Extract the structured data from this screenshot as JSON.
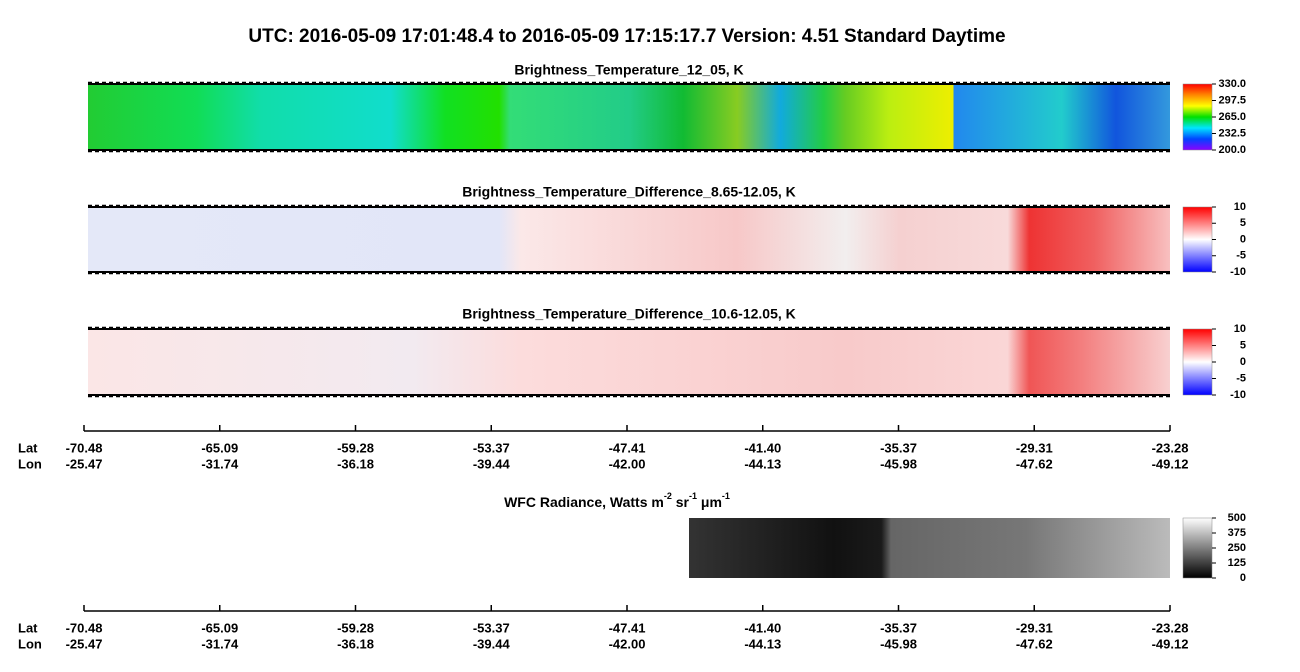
{
  "title": "UTC:  2016-05-09   17:01:48.4  to  2016-05-09   17:15:17.7    Version: 4.51  Standard Daytime",
  "chart_data": [
    {
      "type": "heatmap",
      "title": "Brightness_Temperature_12_05, K",
      "clim": [
        200,
        330
      ],
      "cticks": [
        {
          "value": 200,
          "label": "200.0"
        },
        {
          "value": 232.5,
          "label": "232.5"
        },
        {
          "value": 265,
          "label": "265.0"
        },
        {
          "value": 297.5,
          "label": "297.5"
        },
        {
          "value": 330,
          "label": "330.0"
        }
      ],
      "colormap": [
        "#8a00ff",
        "#0044ff",
        "#00e5ff",
        "#00e000",
        "#ffff00",
        "#ff8800",
        "#ff0000"
      ]
    },
    {
      "type": "heatmap",
      "title": "Brightness_Temperature_Difference_8.65-12.05, K",
      "clim": [
        -10,
        10
      ],
      "cticks": [
        -10,
        -5,
        0,
        5,
        10
      ],
      "colormap": [
        "#0000ff",
        "#ffffff",
        "#ff0000"
      ]
    },
    {
      "type": "heatmap",
      "title": "Brightness_Temperature_Difference_10.6-12.05, K",
      "clim": [
        -10,
        10
      ],
      "cticks": [
        -10,
        -5,
        0,
        5,
        10
      ],
      "colormap": [
        "#0000ff",
        "#ffffff",
        "#ff0000"
      ]
    },
    {
      "type": "heatmap",
      "title": [
        "WFC Radiance, Watts m",
        "-2",
        " sr",
        "-1",
        " μm",
        "-1"
      ],
      "clim": [
        0,
        500
      ],
      "cticks": [
        0,
        125,
        250,
        375,
        500
      ],
      "colormap": [
        "#000000",
        "#ffffff"
      ]
    }
  ],
  "x_axes": [
    {
      "lat_label": "Lat",
      "lon_label": "Lon",
      "lat": [
        -70.48,
        -65.09,
        -59.28,
        -53.37,
        -47.41,
        {
          "value": -41.4,
          "label": "-41.40"
        },
        -35.37,
        -29.31,
        -23.28
      ],
      "lon": [
        -25.47,
        -31.74,
        -36.18,
        -39.44,
        {
          "value": -42,
          "label": "-42.00"
        },
        -44.13,
        -45.98,
        -47.62,
        -49.12
      ]
    },
    {
      "lat_label": "Lat",
      "lon_label": "Lon",
      "lat": [
        -70.48,
        -65.09,
        -59.28,
        -53.37,
        -47.41,
        {
          "value": -41.4,
          "label": "-41.40"
        },
        -35.37,
        -29.31,
        -23.28
      ],
      "lon": [
        -25.47,
        -31.74,
        -36.18,
        -39.44,
        {
          "value": -42,
          "label": "-42.00"
        },
        -44.13,
        -45.98,
        -47.62,
        -49.12
      ]
    }
  ]
}
